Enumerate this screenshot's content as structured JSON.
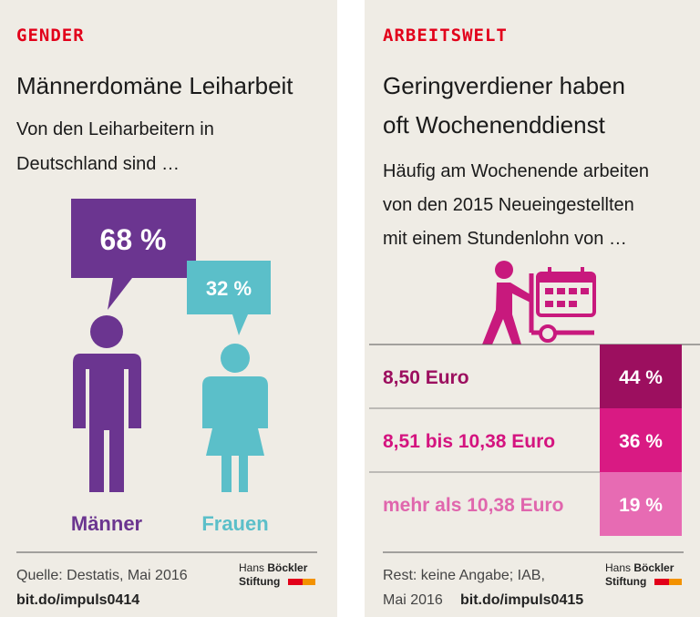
{
  "panels": [
    {
      "kicker": "GENDER",
      "title": "Männerdomäne Leiharbeit",
      "subtitle": [
        "Von den Leiharbeitern in",
        "Deutschland sind …"
      ],
      "groups": [
        {
          "label": "Männer",
          "share": "68 %"
        },
        {
          "label": "Frauen",
          "share": "32 %"
        }
      ],
      "source": [
        "Quelle: Destatis, Mai 2016"
      ],
      "link": "bit.do/impuls0414",
      "logo": {
        "first": "Hans",
        "last": "Böckler",
        "org": "Stiftung"
      }
    },
    {
      "kicker": "ARBEITSWELT",
      "title": [
        "Geringverdiener haben",
        "oft Wochenenddienst"
      ],
      "subtitle": [
        "Häufig am Wochenende arbeiten",
        "von den 2015 Neueingestellten",
        "mit einem Stundenlohn von …"
      ],
      "rows": [
        {
          "label": "8,50 Euro",
          "share": "44 %"
        },
        {
          "label": "8,51 bis 10,38 Euro",
          "share": "36 %"
        },
        {
          "label": "mehr als 10,38 Euro",
          "share": "19 %"
        }
      ],
      "source": [
        "Rest: keine Angabe; IAB,",
        "Mai 2016"
      ],
      "link": "bit.do/impuls0415",
      "logo": {
        "first": "Hans",
        "last": "Böckler",
        "org": "Stiftung"
      }
    }
  ]
}
